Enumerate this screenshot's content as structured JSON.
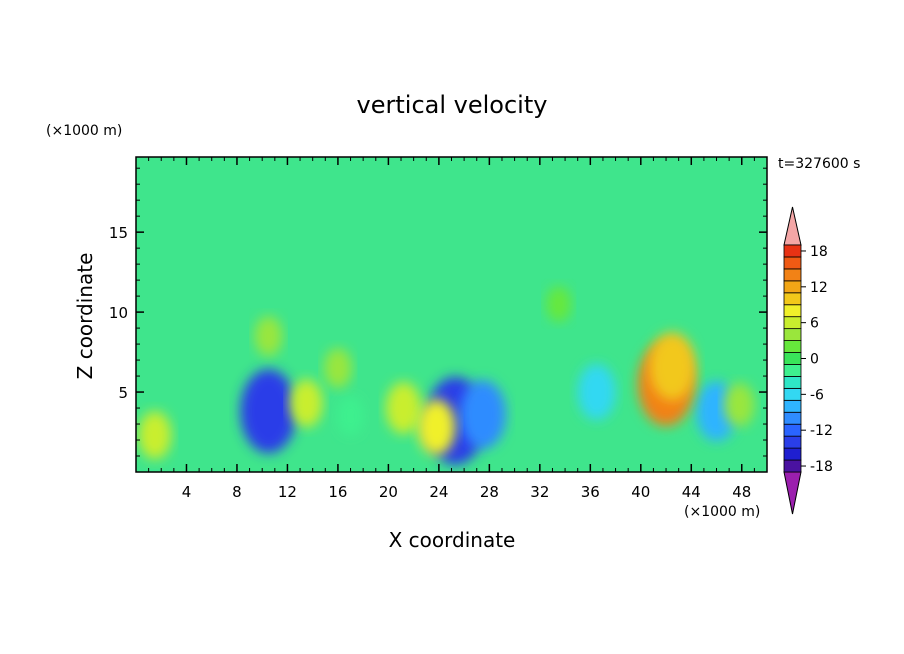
{
  "chart_data": {
    "type": "heatmap",
    "title": "vertical velocity",
    "xlabel": "X coordinate",
    "ylabel": "Z coordinate",
    "x_unit": "(×1000 m)",
    "y_unit": "(×1000 m)",
    "time_label": "t=327600 s",
    "xlim": [
      0,
      50
    ],
    "ylim": [
      0,
      19.7
    ],
    "x_ticks": [
      4,
      8,
      12,
      16,
      20,
      24,
      28,
      32,
      36,
      40,
      44,
      48
    ],
    "y_ticks": [
      5,
      10,
      15
    ],
    "grid": false,
    "colorbar": {
      "placement": "right",
      "range": [
        -21,
        21
      ],
      "step": 2,
      "tick_labels": [
        18,
        12,
        6,
        0,
        -6,
        -12,
        -18
      ],
      "colors": [
        "#9b1fae",
        "#4a12a0",
        "#1f1fd0",
        "#2a3ee8",
        "#2a64ff",
        "#2f8cff",
        "#2fb4ff",
        "#33d8f2",
        "#2fe6c6",
        "#3ef08e",
        "#39e45a",
        "#66e83c",
        "#9ae63c",
        "#c9ee2e",
        "#f0f02a",
        "#f2c81a",
        "#f2a616",
        "#f28216",
        "#f05a14",
        "#e83214",
        "#f4a6a6"
      ]
    },
    "field_features": [
      {
        "x": 10.5,
        "z": 3.8,
        "value": -14
      },
      {
        "x": 25.3,
        "z": 3.2,
        "value": -15
      },
      {
        "x": 27.5,
        "z": 3.6,
        "value": -10
      },
      {
        "x": 46.0,
        "z": 3.8,
        "value": -8
      },
      {
        "x": 36.5,
        "z": 5.0,
        "value": -7
      },
      {
        "x": 17.0,
        "z": 3.5,
        "value": -3
      },
      {
        "x": 42.0,
        "z": 5.5,
        "value": 14
      },
      {
        "x": 42.5,
        "z": 6.6,
        "value": 10
      },
      {
        "x": 21.2,
        "z": 4.0,
        "value": 6
      },
      {
        "x": 23.8,
        "z": 2.8,
        "value": 7
      },
      {
        "x": 13.5,
        "z": 4.3,
        "value": 5
      },
      {
        "x": 1.5,
        "z": 2.3,
        "value": 5
      },
      {
        "x": 16.0,
        "z": 6.5,
        "value": 3
      },
      {
        "x": 10.5,
        "z": 8.5,
        "value": 3
      },
      {
        "x": 47.8,
        "z": 4.2,
        "value": 4
      },
      {
        "x": 33.5,
        "z": 10.5,
        "value": 2
      }
    ]
  }
}
